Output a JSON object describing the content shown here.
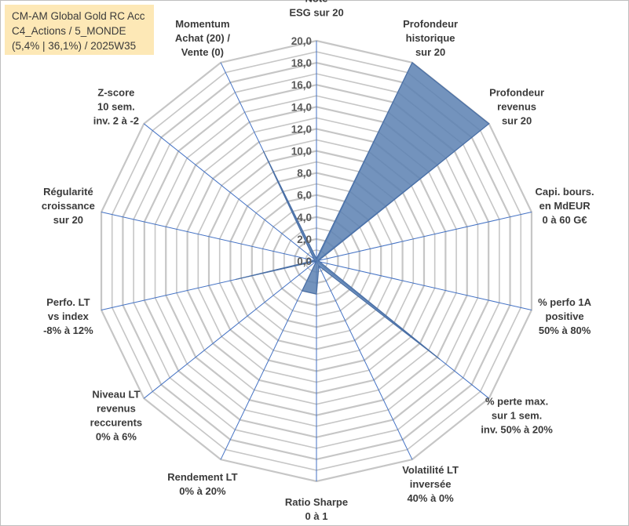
{
  "title_lines": [
    "CM-AM Global Gold RC Acc",
    "C4_Actions / 5_MONDE",
    "(5,4% | 36,1%) / 2025W35"
  ],
  "chart_data": {
    "type": "radar",
    "rmin": 0,
    "rmax": 20,
    "step": 1,
    "tick_labels": [
      "0,0",
      "2,0",
      "4,0",
      "6,0",
      "8,0",
      "10,0",
      "12,0",
      "14,0",
      "16,0",
      "18,0",
      "20,0"
    ],
    "axes": [
      [
        "Note",
        "ESG sur 20"
      ],
      [
        "Profondeur",
        "historique",
        "sur 20"
      ],
      [
        "Profondeur",
        "revenus",
        "sur 20"
      ],
      [
        "Capi. bours.",
        "en MdEUR",
        "0 à 60 G€"
      ],
      [
        "% perfo 1A",
        "positive",
        "50% à 80%"
      ],
      [
        "% perte max.",
        "sur 1 sem.",
        "inv. 50% à 20%"
      ],
      [
        "Volatilité LT",
        "inversée",
        "40% à 0%"
      ],
      [
        "Ratio Sharpe",
        "0 à 1"
      ],
      [
        "Rendement LT",
        "0% à 20%"
      ],
      [
        "Niveau LT",
        "revenus",
        "reccurents",
        "0% à 6%"
      ],
      [
        "Perfo. LT",
        "vs index",
        "-8% à 12%"
      ],
      [
        "Régularité",
        "croissance",
        "sur 20"
      ],
      [
        "Z-score",
        "10 sem.",
        "inv. 2 à -2"
      ],
      [
        "Momentum",
        "Achat (20) /",
        "Vente (0)"
      ]
    ],
    "series": [
      {
        "values": [
          0.2,
          20.0,
          20.0,
          0.2,
          0.3,
          14.3,
          0.5,
          3.0,
          3.0,
          0.0,
          7.5,
          0.2,
          0.3,
          11.1
        ]
      }
    ],
    "colors": {
      "fill": "#5b80b2",
      "stroke": "#4a6fa5",
      "grid": "#c6c6c6",
      "spoke": "#4472c4"
    },
    "grid": true
  }
}
